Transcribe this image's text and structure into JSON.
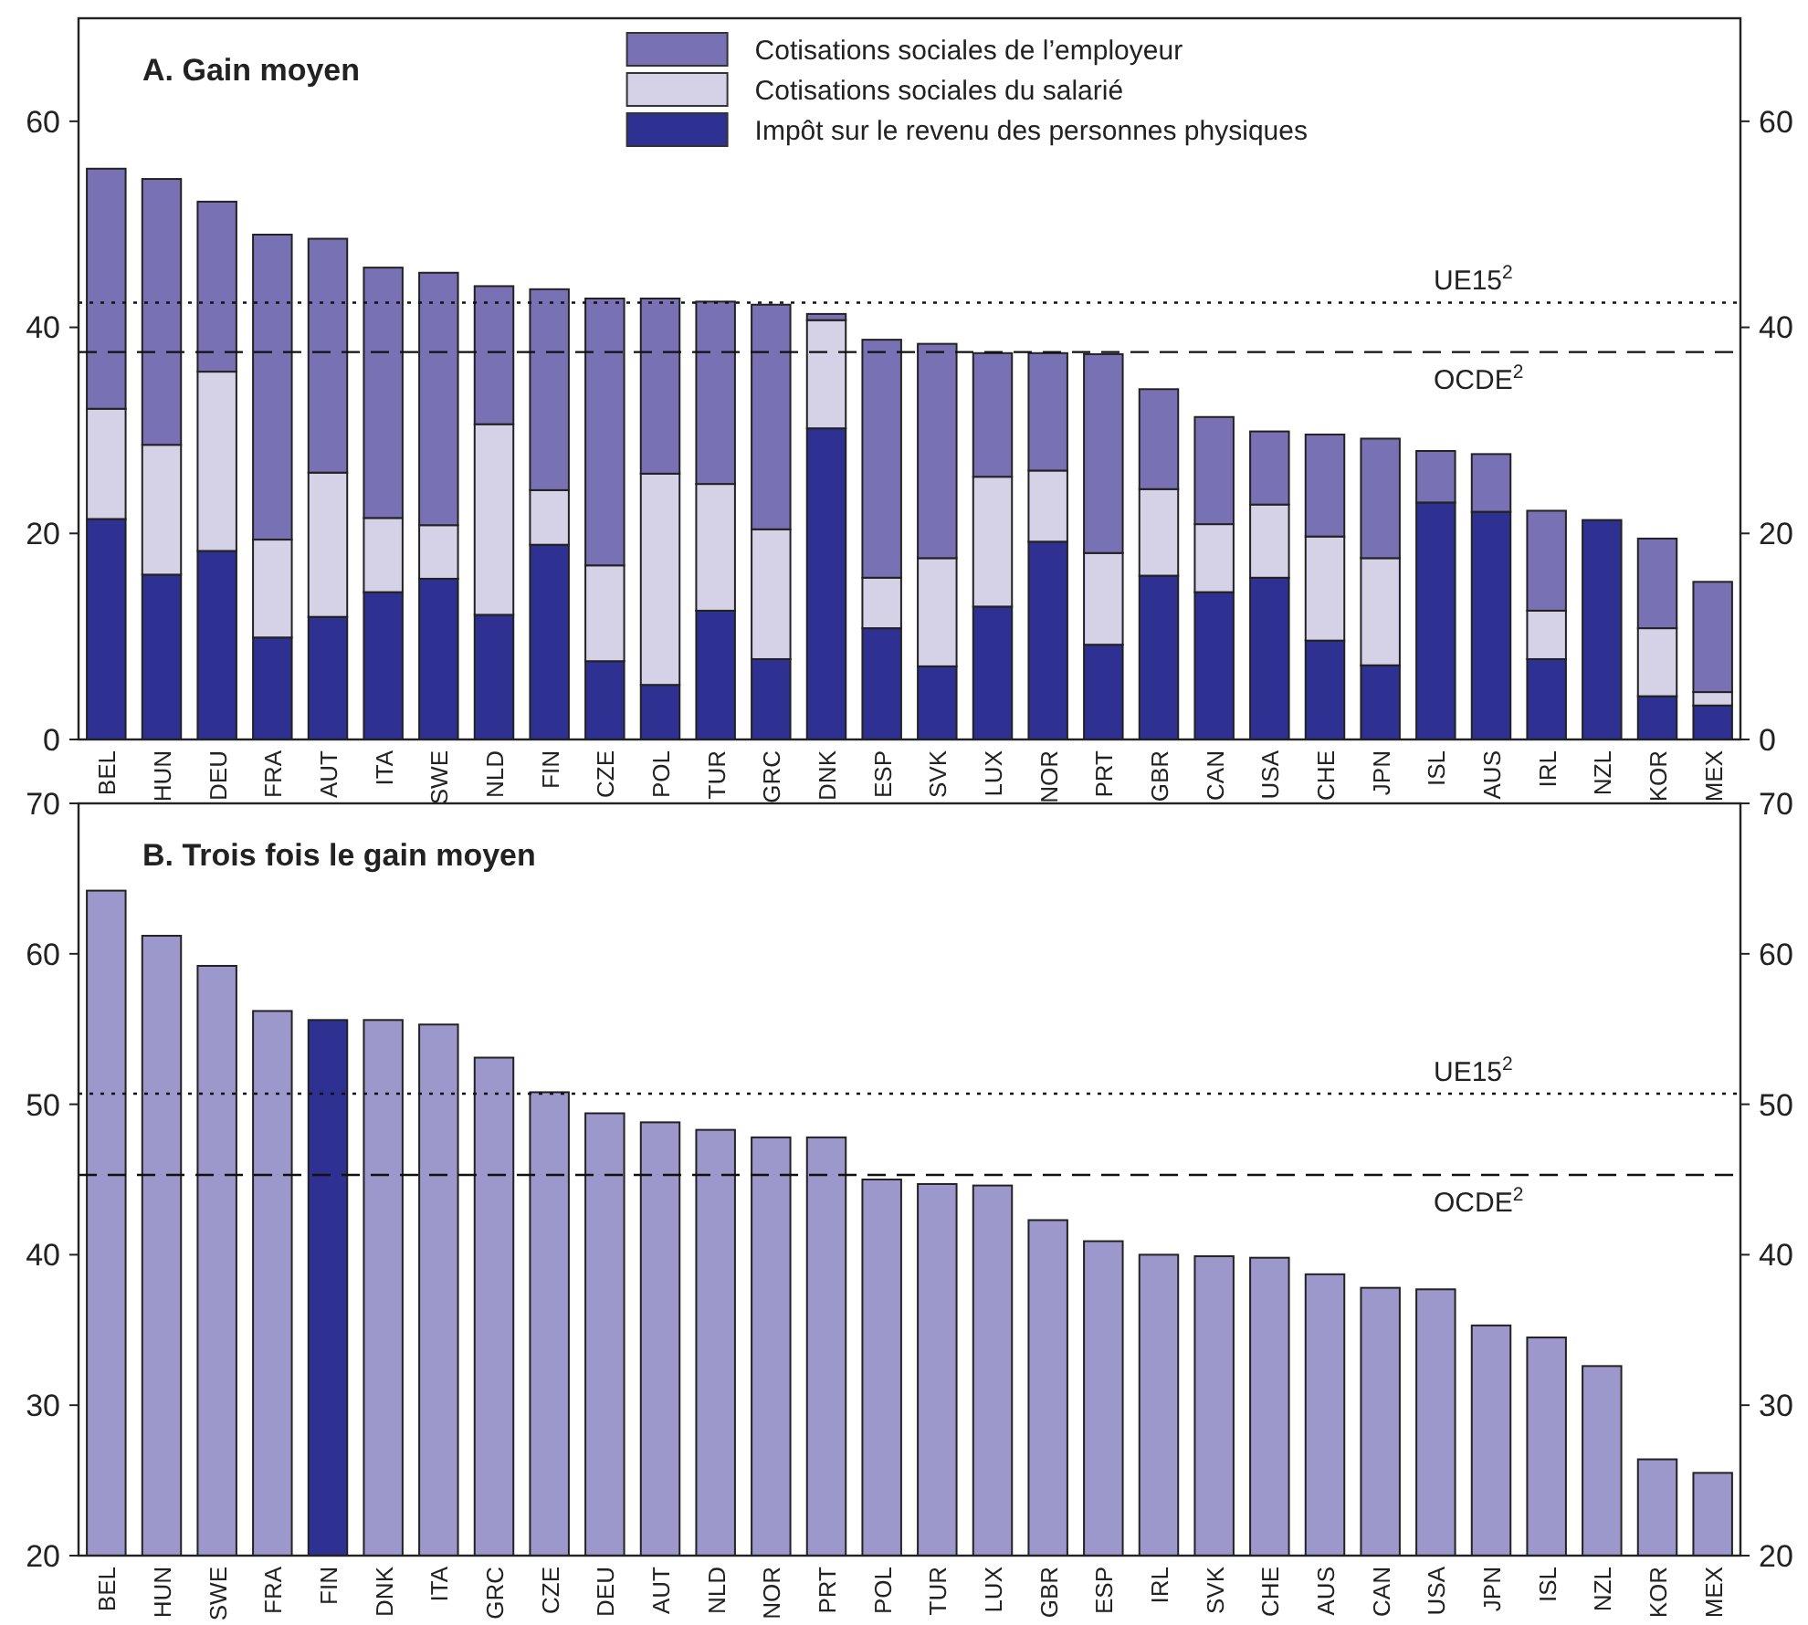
{
  "chart_data": [
    {
      "type": "bar",
      "title": "A. Gain moyen",
      "stacked": true,
      "legend": "top",
      "categories": [
        "BEL",
        "HUN",
        "DEU",
        "FRA",
        "AUT",
        "ITA",
        "SWE",
        "NLD",
        "FIN",
        "CZE",
        "POL",
        "TUR",
        "GRC",
        "DNK",
        "ESP",
        "SVK",
        "LUX",
        "NOR",
        "PRT",
        "GBR",
        "CAN",
        "USA",
        "CHE",
        "JPN",
        "ISL",
        "AUS",
        "IRL",
        "NZL",
        "KOR",
        "MEX"
      ],
      "series": [
        {
          "name": "Impôt sur le revenu des personnes physiques",
          "color": "#2e3192",
          "values": [
            21.4,
            16.0,
            18.3,
            9.9,
            11.9,
            14.3,
            15.6,
            12.1,
            18.9,
            7.6,
            5.3,
            12.5,
            7.8,
            30.2,
            10.8,
            7.1,
            12.9,
            19.2,
            9.2,
            15.9,
            14.3,
            15.7,
            9.6,
            7.2,
            23.0,
            22.1,
            7.8,
            21.3,
            4.2,
            3.3
          ]
        },
        {
          "name": "Cotisations sociales du salarié",
          "color": "#d5d2e8",
          "values": [
            10.7,
            12.6,
            17.4,
            9.5,
            14.0,
            7.2,
            5.2,
            18.5,
            5.3,
            9.3,
            20.5,
            12.3,
            12.6,
            10.5,
            4.9,
            10.5,
            12.6,
            6.9,
            8.9,
            8.4,
            6.6,
            7.1,
            10.1,
            10.4,
            null,
            0,
            4.7,
            0,
            6.6,
            1.3
          ]
        },
        {
          "name": "Cotisations sociales de l’employeur",
          "color": "#7872b4",
          "values": [
            23.3,
            25.8,
            16.5,
            29.6,
            22.7,
            24.3,
            24.5,
            13.4,
            19.5,
            25.9,
            17.0,
            17.7,
            21.8,
            0.6,
            23.1,
            20.8,
            12.0,
            11.4,
            19.3,
            9.7,
            10.4,
            7.1,
            9.9,
            11.6,
            5.0,
            5.6,
            9.7,
            0,
            8.7,
            10.7
          ]
        }
      ],
      "ylim": [
        0,
        70
      ],
      "yticks": [
        0,
        20,
        40,
        60
      ],
      "y2lim": [
        0,
        70
      ],
      "y2ticks": [
        0,
        20,
        40,
        60
      ],
      "ref_lines": [
        {
          "axis": "y",
          "value": 42.4,
          "label": "UE15$^{2}$",
          "line_style": "dotted"
        },
        {
          "axis": "y",
          "value": 37.6,
          "label": "OCDE$^{2}$",
          "line_style": "dashed"
        }
      ]
    },
    {
      "type": "bar",
      "title": "B. Trois fois le gain moyen",
      "categories": [
        "BEL",
        "HUN",
        "SWE",
        "FRA",
        "FIN",
        "DNK",
        "ITA",
        "GRC",
        "CZE",
        "DEU",
        "AUT",
        "NLD",
        "NOR",
        "PRT",
        "POL",
        "TUR",
        "LUX",
        "GBR",
        "ESP",
        "IRL",
        "SVK",
        "CHE",
        "AUS",
        "CAN",
        "USA",
        "JPN",
        "ISL",
        "NZL",
        "KOR",
        "MEX"
      ],
      "values": [
        64.2,
        61.2,
        59.2,
        56.2,
        55.6,
        55.6,
        55.3,
        53.1,
        50.8,
        49.4,
        48.8,
        48.3,
        47.8,
        47.8,
        45.0,
        44.7,
        44.6,
        42.3,
        40.9,
        40.0,
        39.9,
        39.8,
        38.7,
        37.8,
        37.7,
        35.3,
        34.5,
        32.6,
        26.4,
        25.5
      ],
      "colors": [
        "#9d98cb",
        "#9d98cb",
        "#9d98cb",
        "#9d98cb",
        "#2e3192",
        "#9d98cb",
        "#9d98cb",
        "#9d98cb",
        "#9d98cb",
        "#9d98cb",
        "#9d98cb",
        "#9d98cb",
        "#9d98cb",
        "#9d98cb",
        "#9d98cb",
        "#9d98cb",
        "#9d98cb",
        "#9d98cb",
        "#9d98cb",
        "#9d98cb",
        "#9d98cb",
        "#9d98cb",
        "#9d98cb",
        "#9d98cb",
        "#9d98cb",
        "#9d98cb",
        "#9d98cb",
        "#9d98cb",
        "#9d98cb",
        "#9d98cb"
      ],
      "ylim": [
        20,
        70
      ],
      "yticks": [
        20,
        30,
        40,
        50,
        60,
        70
      ],
      "y2lim": [
        20,
        70
      ],
      "y2ticks": [
        20,
        30,
        40,
        50,
        60,
        70
      ],
      "ref_lines": [
        {
          "axis": "y",
          "value": 50.7,
          "label": "UE15$^{2}$",
          "line_style": "dotted"
        },
        {
          "axis": "y",
          "value": 45.3,
          "label": "OCDE$^{2}$",
          "line_style": "dashed"
        }
      ]
    }
  ]
}
